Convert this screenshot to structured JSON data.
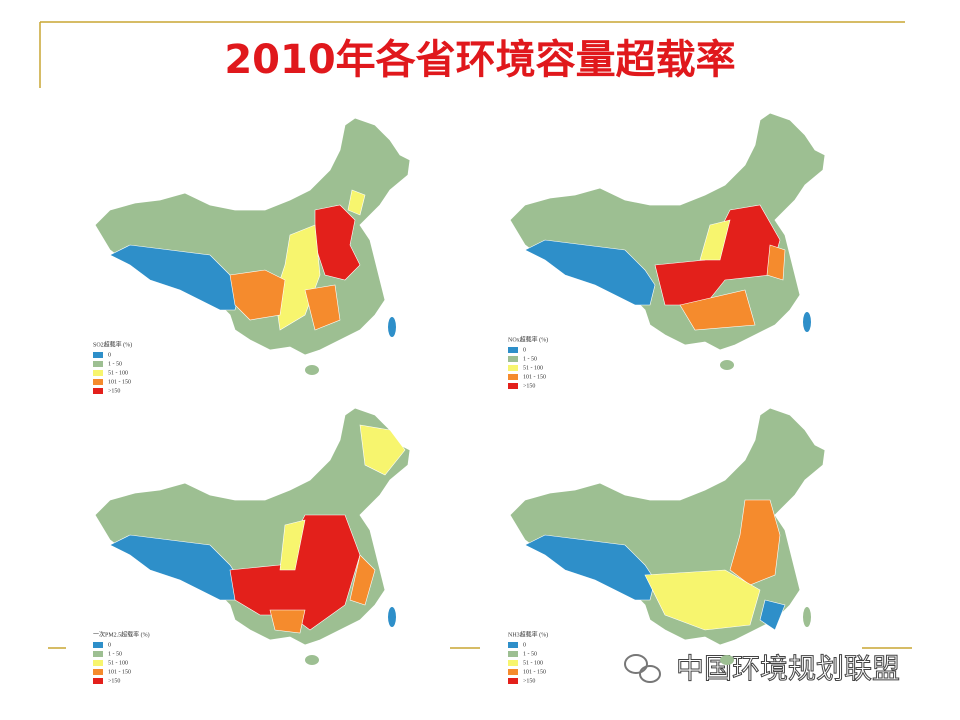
{
  "header": {
    "title": "2010年各省环境容量超载率"
  },
  "legend_items": [
    {
      "label": "0",
      "color": "#2e8fc9"
    },
    {
      "label": "1 - 50",
      "color": "#9dbf92"
    },
    {
      "label": "51 - 100",
      "color": "#f7f56e"
    },
    {
      "label": "101 - 150",
      "color": "#f58b2d"
    },
    {
      "label": ">150",
      "color": "#e3201b"
    }
  ],
  "maps": [
    {
      "legend_title": "SO2超载率 (%)"
    },
    {
      "legend_title": "NOx超载率 (%)"
    },
    {
      "legend_title": "一次PM2.5超载率 (%)"
    },
    {
      "legend_title": "NH3超载率 (%)"
    }
  ],
  "watermark": "中国环境规划联盟"
}
